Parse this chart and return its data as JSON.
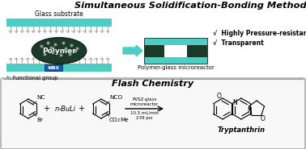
{
  "title_top": "Simultaneous Solidification-Bonding Method",
  "title_bottom": "Flash Chemistry",
  "teal": "#4ECDC4",
  "dark_green": "#1C3A2A",
  "wax_blue": "#1155BB",
  "check1": "√  Highly Pressure-resistant",
  "check2": "√  Transparent",
  "label_glass": "Glass substrate",
  "label_polymer": "Polymer",
  "label_wax": "wax",
  "label_functional": "*: Functional group",
  "label_microreactor": "Polymer-glass microreactor",
  "label_pvsz": "PVSZ-glass\nmicroreactor",
  "label_flow": "10.5 mL/min\n239 psi",
  "label_tryptanthrin": "Tryptanthrin",
  "label_nBuLi": "+ n-BuLi +",
  "bg_color": "#ffffff",
  "spike_color": "#888888",
  "dot_color": "#999999"
}
